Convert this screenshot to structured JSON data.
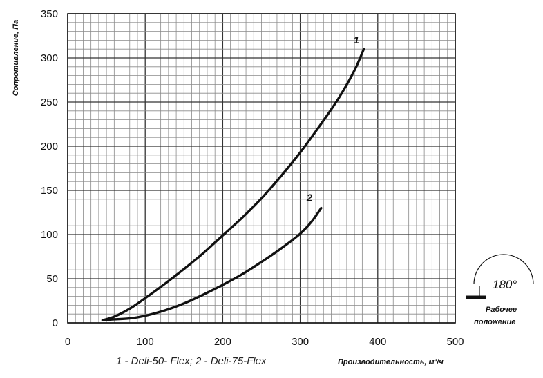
{
  "chart_data": {
    "type": "line",
    "title": "",
    "xlabel": "Производительность, м³/ч",
    "ylabel": "Сопротивление, Па",
    "xlim": [
      0,
      500
    ],
    "ylim": [
      0,
      350
    ],
    "x_ticks": [
      "0",
      "100",
      "200",
      "300",
      "400",
      "500"
    ],
    "y_ticks": [
      "0",
      "50",
      "100",
      "150",
      "200",
      "250",
      "300",
      "350"
    ],
    "grid": true,
    "legend_text": "1 - Deli-50- Flex;  2 - Deli-75-Flex",
    "series": [
      {
        "name": "1",
        "color": "#111111",
        "points": [
          [
            45,
            3
          ],
          [
            60,
            7
          ],
          [
            80,
            16
          ],
          [
            100,
            28
          ],
          [
            125,
            44
          ],
          [
            150,
            61
          ],
          [
            175,
            79
          ],
          [
            200,
            99
          ],
          [
            225,
            119
          ],
          [
            250,
            141
          ],
          [
            275,
            166
          ],
          [
            300,
            193
          ],
          [
            325,
            223
          ],
          [
            350,
            255
          ],
          [
            370,
            286
          ],
          [
            382,
            310
          ]
        ]
      },
      {
        "name": "2",
        "color": "#111111",
        "points": [
          [
            45,
            3
          ],
          [
            60,
            4
          ],
          [
            80,
            5
          ],
          [
            100,
            8
          ],
          [
            125,
            14
          ],
          [
            150,
            22
          ],
          [
            175,
            32
          ],
          [
            200,
            43
          ],
          [
            225,
            55
          ],
          [
            250,
            69
          ],
          [
            275,
            84
          ],
          [
            300,
            101
          ],
          [
            315,
            115
          ],
          [
            327,
            130
          ]
        ]
      }
    ]
  },
  "position_indicator": {
    "angle": "180°",
    "caption_line1": "Рабочее",
    "caption_line2": "положение"
  }
}
